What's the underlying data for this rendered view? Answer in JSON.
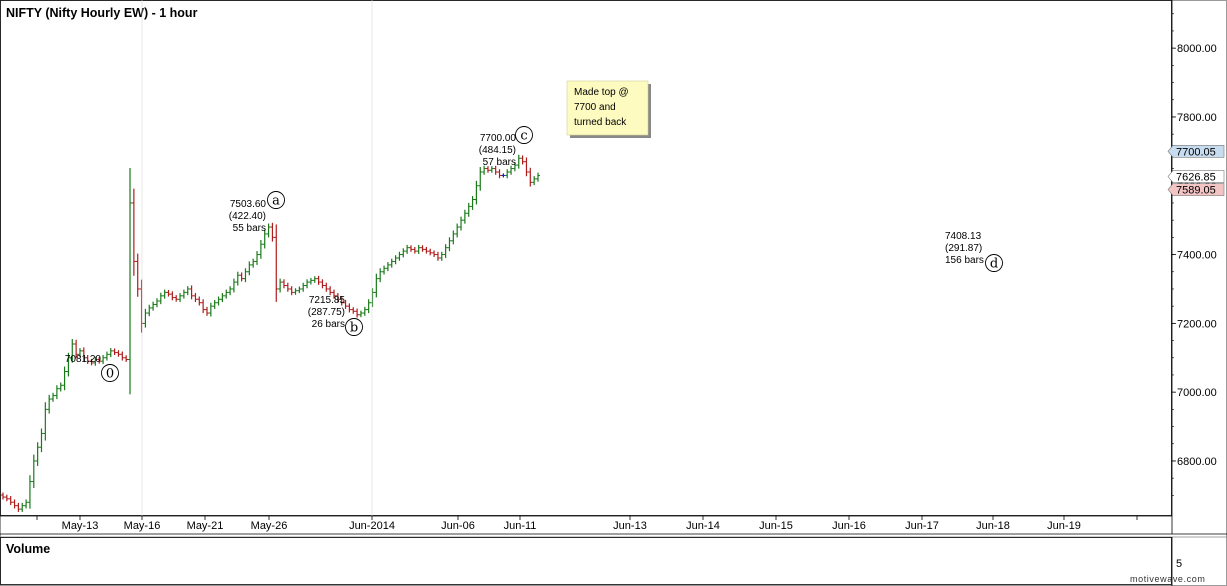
{
  "chart_data": {
    "type": "bar",
    "title": "NIFTY (Nifty Hourly EW) - 1 hour",
    "subpanel_title": "Volume",
    "volume_tick": "5",
    "watermark": "motivewave.com",
    "ylim": [
      6640,
      8140
    ],
    "yticks": [
      "6800.00",
      "7000.00",
      "7200.00",
      "7400.00",
      "7600.00",
      "7800.00",
      "8000.00"
    ],
    "xticks": [
      "May-13",
      "May-16",
      "May-21",
      "May-26",
      "Jun-2014",
      "Jun-06",
      "Jun-11",
      "Jun-13",
      "Jun-14",
      "Jun-15",
      "Jun-16",
      "Jun-17",
      "Jun-18",
      "Jun-19"
    ],
    "price_markers": [
      {
        "label": "7700.05",
        "value": 7700.05,
        "color": "#c8dcf0"
      },
      {
        "label": "7626.85",
        "value": 7626.85,
        "color": "#ffffff"
      },
      {
        "label": "7589.05",
        "value": 7589.05,
        "color": "#f2c4c4"
      }
    ],
    "colors": {
      "up": "#1a7a1a",
      "down": "#b01c1c",
      "flat": "#1a1aa8",
      "axis": "#000000",
      "grid": "#c0c0c0"
    },
    "waves": [
      {
        "label": "0",
        "price": "7081.20",
        "retrace": "",
        "bars": "",
        "value": 7081.2
      },
      {
        "label": "a",
        "price": "7503.60",
        "retrace": "(422.40)",
        "bars": "55 bars",
        "value": 7503.6
      },
      {
        "label": "b",
        "price": "7215.85",
        "retrace": "(287.75)",
        "bars": "26 bars",
        "value": 7215.85
      },
      {
        "label": "c",
        "price": "7700.00",
        "retrace": "(484.15)",
        "bars": "57 bars",
        "value": 7700.0
      },
      {
        "label": "d",
        "price": "7408.13",
        "retrace": "(291.87)",
        "bars": "156 bars",
        "value": 7408.13
      }
    ],
    "note": [
      "Made top @",
      "7700 and",
      "turned back"
    ],
    "closes": [
      6695,
      6690,
      6680,
      6670,
      6660,
      6670,
      6680,
      6740,
      6800,
      6840,
      6880,
      6950,
      6980,
      6990,
      7010,
      7020,
      7060,
      7100,
      7140,
      7110,
      7120,
      7100,
      7090,
      7085,
      7095,
      7090,
      7100,
      7110,
      7120,
      7115,
      7110,
      7100,
      7095,
      7550,
      7380,
      7300,
      7200,
      7230,
      7245,
      7255,
      7265,
      7280,
      7290,
      7285,
      7275,
      7270,
      7280,
      7290,
      7300,
      7280,
      7270,
      7260,
      7240,
      7230,
      7250,
      7260,
      7270,
      7280,
      7290,
      7300,
      7320,
      7340,
      7330,
      7350,
      7370,
      7380,
      7400,
      7430,
      7460,
      7480,
      7450,
      7300,
      7320,
      7310,
      7300,
      7290,
      7295,
      7300,
      7310,
      7320,
      7325,
      7330,
      7320,
      7310,
      7300,
      7290,
      7280,
      7270,
      7260,
      7250,
      7240,
      7235,
      7225,
      7230,
      7240,
      7260,
      7290,
      7330,
      7350,
      7360,
      7370,
      7380,
      7390,
      7400,
      7410,
      7420,
      7415,
      7410,
      7420,
      7415,
      7410,
      7405,
      7400,
      7390,
      7400,
      7420,
      7440,
      7460,
      7480,
      7500,
      7520,
      7540,
      7560,
      7600,
      7640,
      7650,
      7645,
      7650,
      7640,
      7630,
      7630,
      7640,
      7650,
      7660,
      7680,
      7670,
      7640,
      7610,
      7620,
      7630
    ]
  }
}
